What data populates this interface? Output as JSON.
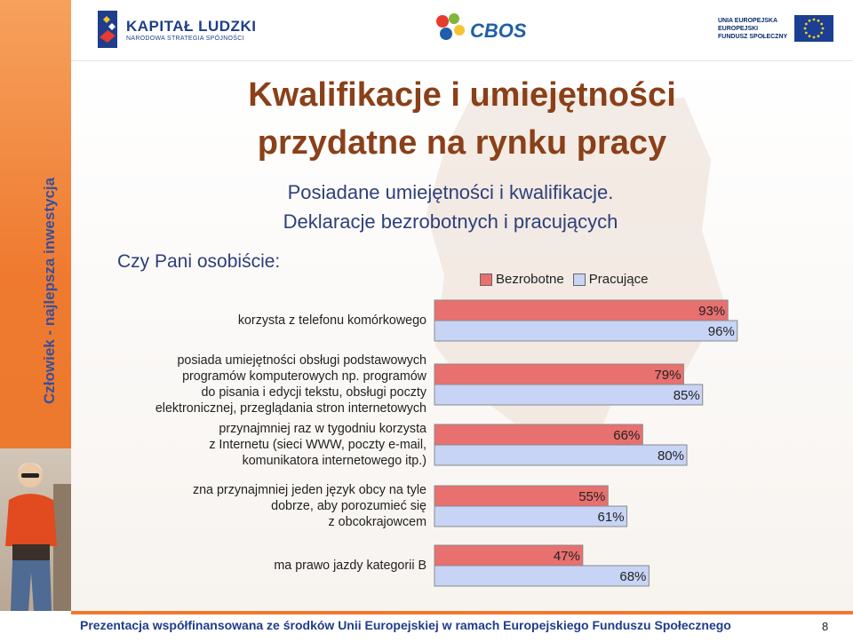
{
  "header": {
    "kapital_ludzki": {
      "title": "KAPITAŁ LUDZKI",
      "subtitle": "NARODOWA STRATEGIA SPÓJNOŚCI"
    },
    "cbos": {
      "name": "CBOS"
    },
    "ue": {
      "line1": "UNIA EUROPEJSKA",
      "line2": "EUROPEJSKI",
      "line3": "FUNDUSZ SPOŁECZNY"
    }
  },
  "sidebar": {
    "vertical_text": "Człowiek - najlepsza inwestycja"
  },
  "slide": {
    "title_line1": "Kwalifikacje i umiejętności",
    "title_line2": "przydatne na rynku pracy",
    "subtitle_line1": "Posiadane umiejętności i kwalifikacje.",
    "subtitle_line2": "Deklaracje bezrobotnych i pracujących",
    "question": "Czy Pani osobiście:"
  },
  "footer": {
    "text": "Prezentacja współfinansowana ze środków Unii Europejskiej w ramach Europejskiego Funduszu Społecznego",
    "page_number": "8"
  },
  "chart_data": {
    "type": "bar",
    "orientation": "horizontal",
    "xlim": [
      0,
      100
    ],
    "legend_placement": "top",
    "grid": false,
    "categories": [
      "korzysta z telefonu komórkowego",
      "posiada umiejętności obsługi podstawowych programów komputerowych np. programów do pisania i edycji tekstu, obsługi poczty elektronicznej, przeglądania stron internetowych",
      "przynajmniej raz w tygodniu korzysta z Internetu (sieci WWW, poczty e-mail, komunikatora internetowego itp.)",
      "zna przynajmniej jeden język obcy na tyle dobrze, aby porozumieć się z obcokrajowcem",
      "ma prawo jazdy kategorii B"
    ],
    "category_lines": [
      [
        "korzysta z telefonu komórkowego"
      ],
      [
        "posiada umiejętności obsługi podstawowych",
        "programów komputerowych np. programów",
        "do pisania i edycji tekstu, obsługi poczty",
        "elektronicznej, przeglądania stron internetowych"
      ],
      [
        "przynajmniej raz w tygodniu korzysta",
        "z Internetu (sieci WWW, poczty e-mail,",
        "komunikatora internetowego itp.)"
      ],
      [
        "zna przynajmniej jeden język obcy na tyle",
        "dobrze, aby porozumieć się",
        "z obcokrajowcem"
      ],
      [
        "ma prawo jazdy kategorii B"
      ]
    ],
    "series": [
      {
        "name": "Bezrobotne",
        "color": "#e8706f",
        "values": [
          93,
          79,
          66,
          55,
          47
        ],
        "labels": [
          "93%",
          "79%",
          "66%",
          "55%",
          "47%"
        ]
      },
      {
        "name": "Pracujące",
        "color": "#c7d4f5",
        "values": [
          96,
          85,
          80,
          61,
          68
        ],
        "labels": [
          "96%",
          "85%",
          "80%",
          "61%",
          "68%"
        ]
      }
    ]
  }
}
